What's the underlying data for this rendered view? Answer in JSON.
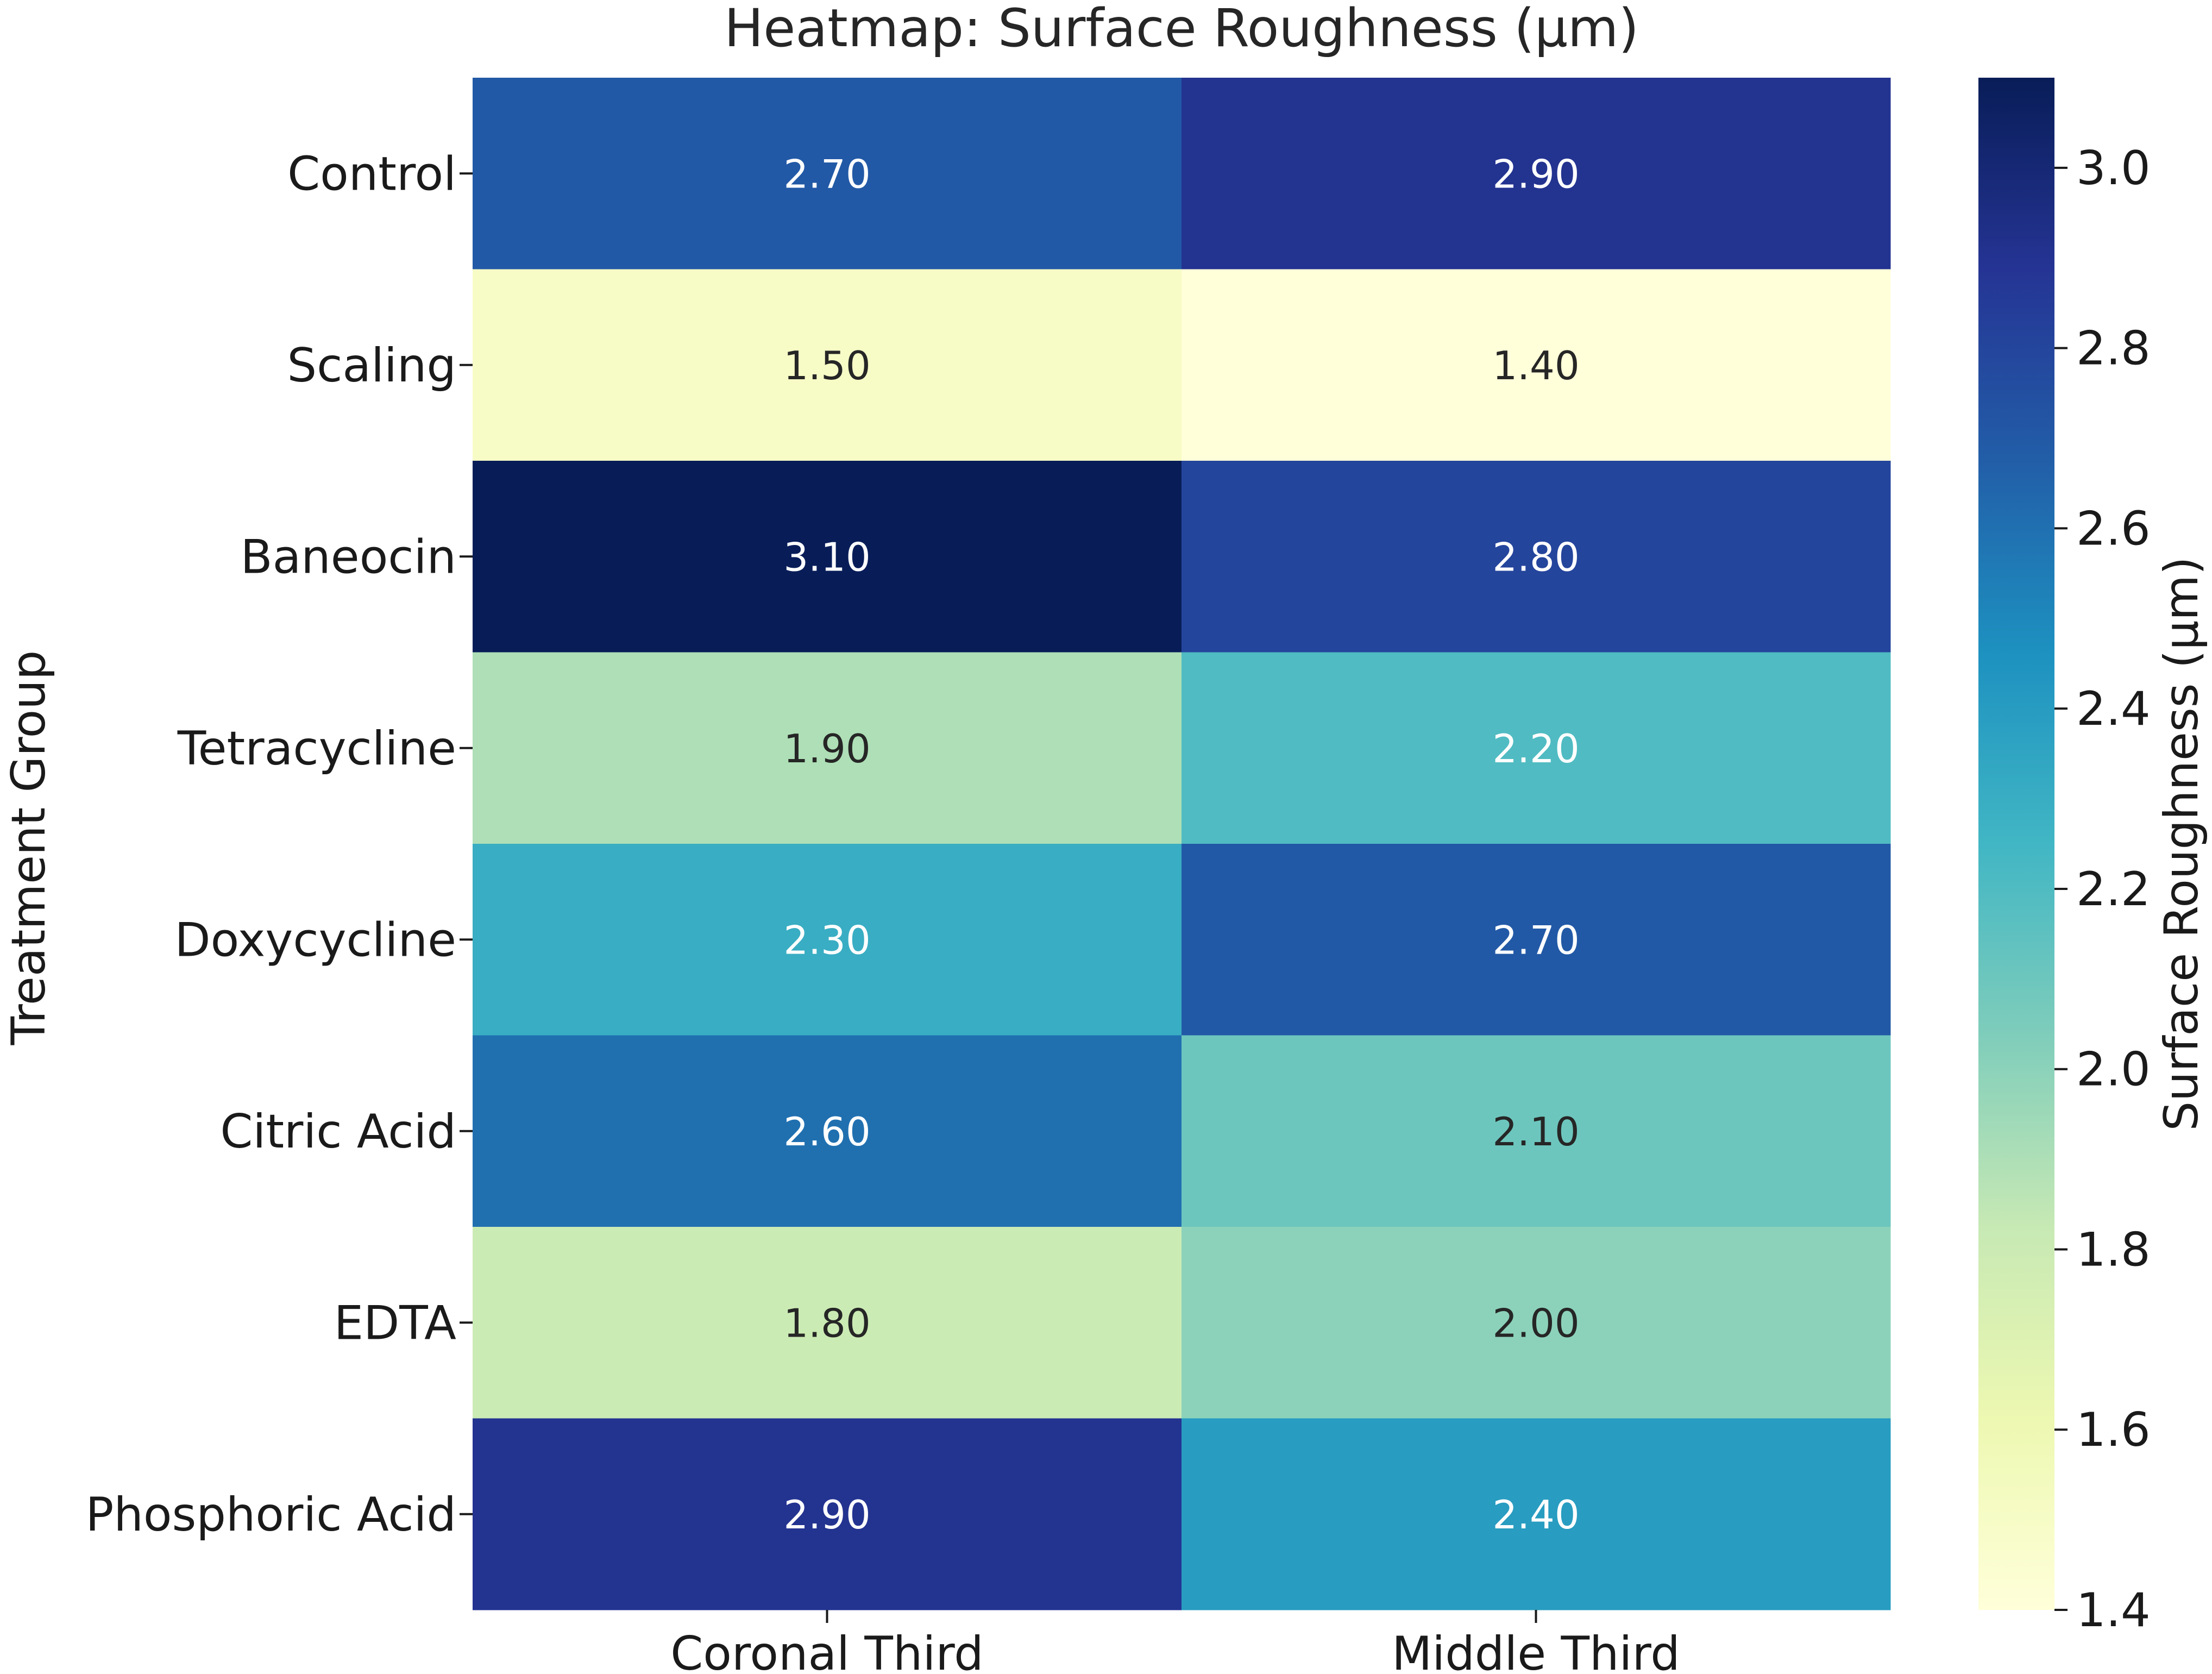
{
  "chart_data": {
    "type": "heatmap",
    "title": "Heatmap: Surface Roughness (µm)",
    "xlabel": "",
    "ylabel": "Treatment Group",
    "x_categories": [
      "Coronal Third",
      "Middle Third"
    ],
    "y_categories": [
      "Control",
      "Scaling",
      "Baneocin",
      "Tetracycline",
      "Doxycycline",
      "Citric Acid",
      "EDTA",
      "Phosphoric Acid"
    ],
    "values": [
      [
        2.7,
        2.9
      ],
      [
        1.5,
        1.4
      ],
      [
        3.1,
        2.8
      ],
      [
        1.9,
        2.2
      ],
      [
        2.3,
        2.7
      ],
      [
        2.6,
        2.1
      ],
      [
        1.8,
        2.0
      ],
      [
        2.9,
        2.4
      ]
    ],
    "value_labels": [
      [
        "2.70",
        "2.90"
      ],
      [
        "1.50",
        "1.40"
      ],
      [
        "3.10",
        "2.80"
      ],
      [
        "1.90",
        "2.20"
      ],
      [
        "2.30",
        "2.70"
      ],
      [
        "2.60",
        "2.10"
      ],
      [
        "1.80",
        "2.00"
      ],
      [
        "2.90",
        "2.40"
      ]
    ],
    "colorbar": {
      "label": "Surface Roughness (µm)",
      "range": [
        1.4,
        3.1
      ],
      "ticks": [
        1.4,
        1.6,
        1.8,
        2.0,
        2.2,
        2.4,
        2.6,
        2.8,
        3.0
      ],
      "tick_labels": [
        "1.4",
        "1.6",
        "1.8",
        "2.0",
        "2.2",
        "2.4",
        "2.6",
        "2.8",
        "3.0"
      ],
      "colormap": "YlGnBu"
    },
    "colors": {
      "colormap_stops": [
        "#ffffd9",
        "#edf8b1",
        "#c7e9b4",
        "#7fcdbb",
        "#41b6c4",
        "#1d91c0",
        "#225ea8",
        "#253494",
        "#081d58"
      ],
      "text_light": "#ffffff",
      "text_dark": "#262626"
    }
  }
}
